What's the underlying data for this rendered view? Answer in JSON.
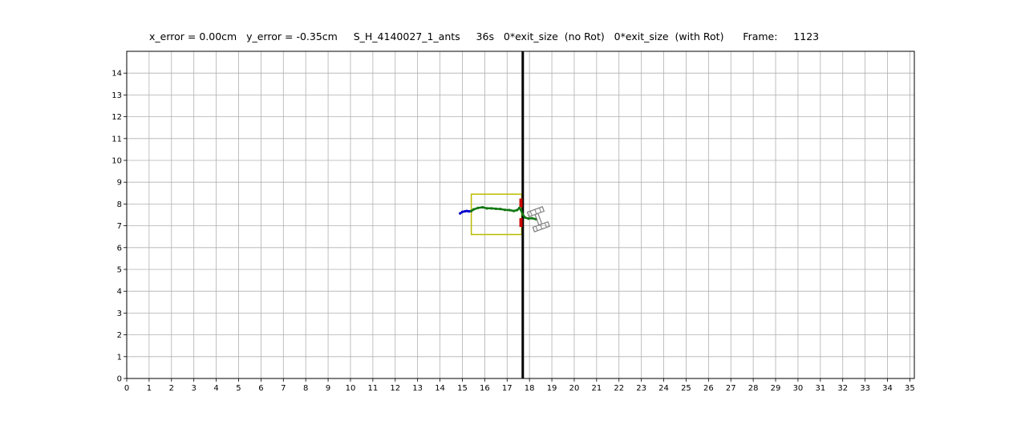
{
  "header": {
    "text": "x_error = 0.00cm   y_error = -0.35cm     S_H_4140027_1_ants     36s   0*exit_size  (no Rot)   0*exit_size  (with Rot)      Frame:     1123"
  },
  "chart_data": {
    "type": "line",
    "title": "x_error = 0.00cm   y_error = -0.35cm     S_H_4140027_1_ants     36s   0*exit_size  (no Rot)   0*exit_size  (with Rot)      Frame:     1123",
    "xlabel": "",
    "ylabel": "",
    "xlim": [
      0,
      35.2
    ],
    "ylim": [
      0,
      15
    ],
    "xticks": [
      0,
      1,
      2,
      3,
      4,
      5,
      6,
      7,
      8,
      9,
      10,
      11,
      12,
      13,
      14,
      15,
      16,
      17,
      18,
      19,
      20,
      21,
      22,
      23,
      24,
      25,
      26,
      27,
      28,
      29,
      30,
      31,
      32,
      33,
      34,
      35
    ],
    "yticks": [
      0,
      1,
      2,
      3,
      4,
      5,
      6,
      7,
      8,
      9,
      10,
      11,
      12,
      13,
      14
    ],
    "grid": true,
    "colors": {
      "trajectory_blue": "#0000cc",
      "trajectory_green": "#117711",
      "box": "#bbbb00",
      "wall": "#000000",
      "exit_markers": "#cc0000",
      "load_shape": "#808080",
      "grid": "#b0b0b0"
    },
    "series": [
      {
        "color": "#0000cc",
        "points": [
          [
            14.9,
            7.57
          ],
          [
            15.0,
            7.64
          ],
          [
            15.1,
            7.66
          ],
          [
            15.2,
            7.68
          ],
          [
            15.3,
            7.66
          ],
          [
            15.4,
            7.68
          ]
        ]
      },
      {
        "color": "#117711",
        "points": [
          [
            15.4,
            7.68
          ],
          [
            15.5,
            7.75
          ],
          [
            15.7,
            7.82
          ],
          [
            15.9,
            7.85
          ],
          [
            16.1,
            7.8
          ],
          [
            16.3,
            7.8
          ],
          [
            16.5,
            7.78
          ],
          [
            16.7,
            7.77
          ],
          [
            16.9,
            7.73
          ],
          [
            17.1,
            7.72
          ],
          [
            17.3,
            7.68
          ],
          [
            17.45,
            7.72
          ],
          [
            17.55,
            7.82
          ],
          [
            17.62,
            7.72
          ],
          [
            17.7,
            7.52
          ],
          [
            17.8,
            7.38
          ],
          [
            17.95,
            7.33
          ],
          [
            18.1,
            7.35
          ],
          [
            18.3,
            7.3
          ]
        ]
      }
    ],
    "shapes": {
      "box": {
        "x0": 15.4,
        "x1": 17.65,
        "y0": 6.6,
        "y1": 8.45
      },
      "wall_x": 17.7,
      "exit_markers": [
        {
          "x": 17.62,
          "y0": 7.85,
          "y1": 8.25
        },
        {
          "x": 17.62,
          "y0": 6.95,
          "y1": 7.35
        }
      ],
      "load_center": {
        "x": 18.4,
        "y": 7.3
      }
    }
  }
}
